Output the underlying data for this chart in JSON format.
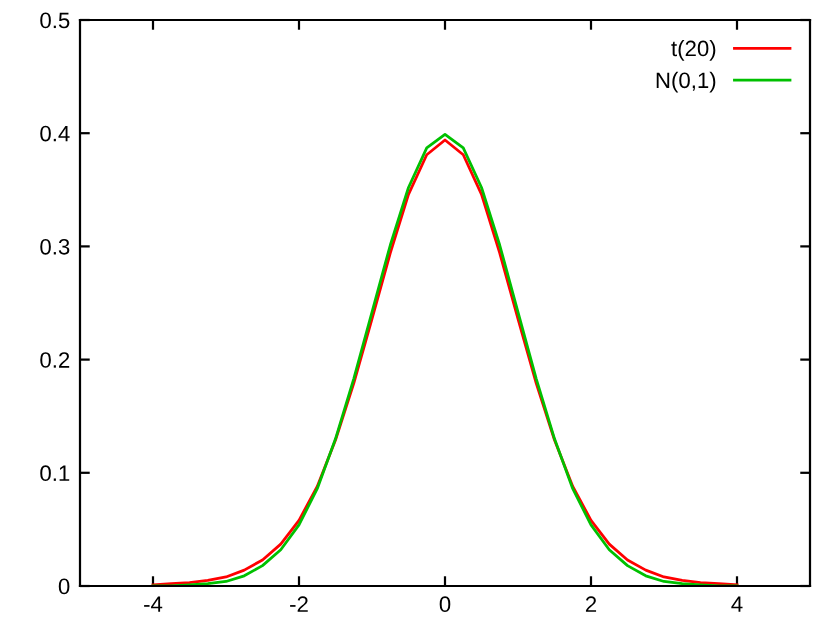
{
  "chart_data": {
    "type": "line",
    "x": [
      -4,
      -3.75,
      -3.5,
      -3.25,
      -3,
      -2.75,
      -2.5,
      -2.25,
      -2,
      -1.75,
      -1.5,
      -1.25,
      -1,
      -0.75,
      -0.5,
      -0.25,
      0,
      0.25,
      0.5,
      0.75,
      1,
      1.25,
      1.5,
      1.75,
      2,
      2.25,
      2.5,
      2.75,
      3,
      3.25,
      3.5,
      3.75,
      4
    ],
    "series": [
      {
        "name": "t(20)",
        "color": "#ff0000",
        "values": [
          0.001,
          0.002,
          0.003,
          0.005,
          0.008,
          0.014,
          0.023,
          0.037,
          0.058,
          0.088,
          0.129,
          0.179,
          0.236,
          0.294,
          0.346,
          0.381,
          0.394,
          0.381,
          0.346,
          0.294,
          0.236,
          0.179,
          0.129,
          0.088,
          0.058,
          0.037,
          0.023,
          0.014,
          0.008,
          0.005,
          0.003,
          0.002,
          0.001
        ]
      },
      {
        "name": "N(0,1)",
        "color": "#00c000",
        "values": [
          0.0,
          0.0,
          0.001,
          0.002,
          0.004,
          0.009,
          0.018,
          0.032,
          0.054,
          0.086,
          0.13,
          0.183,
          0.242,
          0.301,
          0.352,
          0.387,
          0.399,
          0.387,
          0.352,
          0.301,
          0.242,
          0.183,
          0.13,
          0.086,
          0.054,
          0.032,
          0.018,
          0.009,
          0.004,
          0.002,
          0.001,
          0.0,
          0.0
        ]
      }
    ],
    "xlim": [
      -5,
      5
    ],
    "xticks": [
      -4,
      -2,
      0,
      2,
      4
    ],
    "ylim": [
      0,
      0.5
    ],
    "yticks": [
      0,
      0.1,
      0.2,
      0.3,
      0.4,
      0.5
    ],
    "grid": false,
    "legend": "top right",
    "line_style": "solid",
    "marker": "none"
  }
}
